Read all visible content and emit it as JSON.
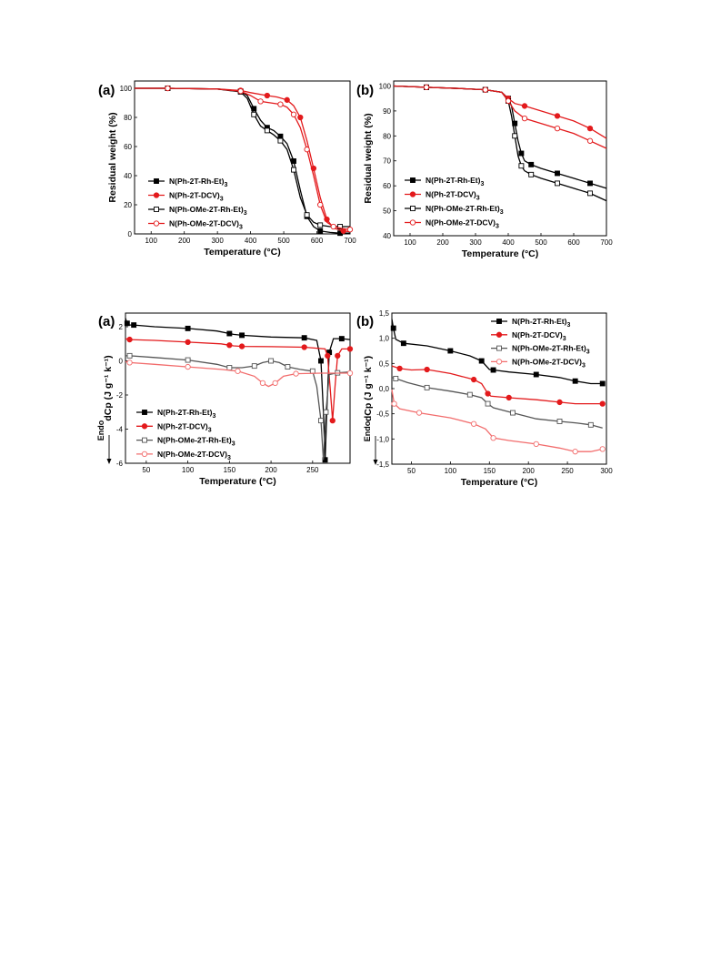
{
  "chart_data": [
    {
      "id": "tga-a",
      "type": "line",
      "panel_label": "(a)",
      "xlabel": "Temperature (°C)",
      "ylabel": "Residual weight (%)",
      "xlim": [
        50,
        700
      ],
      "ylim": [
        0,
        105
      ],
      "xticks": [
        100,
        200,
        300,
        400,
        500,
        600,
        700
      ],
      "yticks": [
        0,
        20,
        40,
        60,
        80,
        100
      ],
      "legend": "lower-left",
      "series": [
        {
          "name": "N(Ph-2T-Rh-Et)3",
          "color": "#000000",
          "marker": "square-filled",
          "x": [
            50,
            150,
            300,
            370,
            390,
            410,
            430,
            450,
            470,
            490,
            510,
            530,
            550,
            570,
            590,
            610,
            640,
            670,
            700
          ],
          "y": [
            100,
            100,
            99.5,
            98,
            95,
            86,
            78,
            73,
            71,
            67,
            62,
            50,
            30,
            12,
            5,
            2,
            1,
            0.5,
            0.5
          ]
        },
        {
          "name": "N(Ph-2T-DCV)3",
          "color": "#e31a1c",
          "marker": "circle-filled",
          "x": [
            50,
            150,
            300,
            370,
            400,
            450,
            480,
            510,
            530,
            550,
            570,
            590,
            610,
            630,
            650,
            680,
            700
          ],
          "y": [
            100,
            100,
            99.5,
            98.5,
            97,
            95,
            94,
            92,
            88,
            80,
            64,
            45,
            25,
            10,
            4,
            2,
            1.5
          ]
        },
        {
          "name": "N(Ph-OMe-2T-Rh-Et)3",
          "color": "#000000",
          "marker": "square-open",
          "x": [
            50,
            150,
            300,
            370,
            390,
            410,
            430,
            450,
            470,
            490,
            510,
            530,
            550,
            570,
            590,
            610,
            640,
            670,
            700
          ],
          "y": [
            100,
            100,
            99.5,
            97.5,
            93,
            82,
            74,
            71,
            68,
            64,
            58,
            44,
            25,
            13,
            8,
            6,
            5,
            5,
            5
          ]
        },
        {
          "name": "N(Ph-OMe-2T-DCV)3",
          "color": "#e31a1c",
          "marker": "circle-open",
          "x": [
            50,
            150,
            300,
            370,
            400,
            430,
            460,
            490,
            510,
            530,
            550,
            570,
            590,
            610,
            630,
            650,
            680,
            700
          ],
          "y": [
            100,
            100,
            99.5,
            98,
            95,
            91,
            90,
            89,
            87,
            82,
            73,
            58,
            40,
            20,
            8,
            5,
            3.5,
            3
          ]
        }
      ]
    },
    {
      "id": "tga-b",
      "type": "line",
      "panel_label": "(b)",
      "xlabel": "Temperature (°C)",
      "ylabel": "Residual weight (%)",
      "xlim": [
        50,
        700
      ],
      "ylim": [
        40,
        102
      ],
      "xticks": [
        100,
        200,
        300,
        400,
        500,
        600,
        700
      ],
      "yticks": [
        40,
        50,
        60,
        70,
        80,
        90,
        100
      ],
      "legend": "lower-left",
      "series": [
        {
          "name": "N(Ph-2T-Rh-Et)3",
          "color": "#000000",
          "marker": "square-filled",
          "x": [
            50,
            150,
            250,
            330,
            380,
            400,
            410,
            420,
            430,
            440,
            450,
            470,
            500,
            550,
            600,
            650,
            700
          ],
          "y": [
            100,
            99.5,
            99,
            98.5,
            97.5,
            95,
            92,
            85,
            78,
            73,
            70,
            68.5,
            67,
            65,
            63,
            61,
            59
          ]
        },
        {
          "name": "N(Ph-2T-DCV)3",
          "color": "#e31a1c",
          "marker": "circle-filled",
          "x": [
            50,
            150,
            250,
            330,
            380,
            400,
            420,
            450,
            500,
            550,
            600,
            650,
            700
          ],
          "y": [
            100,
            99.5,
            99,
            98.5,
            97.5,
            95,
            93,
            92,
            90,
            88,
            86,
            83,
            79
          ]
        },
        {
          "name": "N(Ph-OMe-2T-Rh-Et)3",
          "color": "#000000",
          "marker": "square-open",
          "x": [
            50,
            150,
            250,
            330,
            380,
            400,
            410,
            420,
            430,
            440,
            450,
            470,
            500,
            550,
            600,
            650,
            700
          ],
          "y": [
            100,
            99.5,
            99,
            98.5,
            97.5,
            94,
            88,
            80,
            72,
            68,
            66,
            64.5,
            63,
            61,
            59,
            57,
            54
          ]
        },
        {
          "name": "N(Ph-OMe-2T-DCV)3",
          "color": "#e31a1c",
          "marker": "circle-open",
          "x": [
            50,
            150,
            250,
            330,
            380,
            400,
            420,
            450,
            500,
            550,
            600,
            650,
            700
          ],
          "y": [
            100,
            99.5,
            99,
            98.5,
            97.5,
            94,
            90,
            87,
            85,
            83,
            81,
            78,
            75
          ]
        }
      ]
    },
    {
      "id": "dsc-a",
      "type": "line",
      "panel_label": "(a)",
      "xlabel": "Temperature (°C)",
      "ylabel": "dCp (J g⁻¹ k⁻¹)",
      "xlim": [
        25,
        295
      ],
      "ylim": [
        -6,
        2.8
      ],
      "xticks": [
        50,
        100,
        150,
        200,
        250
      ],
      "yticks": [
        -6,
        -4,
        -2,
        0,
        2
      ],
      "legend": "lower-left",
      "annotation": "Endo",
      "series": [
        {
          "name": "N(Ph-2T-Rh-Et)3",
          "color": "#000000",
          "marker": "square-filled",
          "x": [
            25,
            27,
            29,
            35,
            60,
            100,
            135,
            150,
            155,
            165,
            200,
            240,
            255,
            260,
            263,
            265,
            267,
            270,
            275,
            285,
            295
          ],
          "y": [
            2.5,
            2.2,
            2.1,
            2.1,
            2.0,
            1.9,
            1.75,
            1.6,
            1.55,
            1.5,
            1.4,
            1.35,
            1.2,
            0,
            -3,
            -5.8,
            -3,
            0.5,
            1.3,
            1.3,
            1.25
          ]
        },
        {
          "name": "N(Ph-2T-DCV)3",
          "color": "#e31a1c",
          "marker": "circle-filled",
          "x": [
            25,
            30,
            60,
            100,
            140,
            150,
            155,
            165,
            200,
            240,
            265,
            268,
            271,
            274,
            277,
            280,
            285,
            295
          ],
          "y": [
            1.3,
            1.25,
            1.2,
            1.1,
            1.0,
            0.92,
            0.88,
            0.85,
            0.83,
            0.8,
            0.7,
            0.3,
            -1.5,
            -3.5,
            -1.5,
            0.3,
            0.7,
            0.7
          ]
        },
        {
          "name": "N(Ph-OMe-2T-Rh-Et)3",
          "color": "#555555",
          "marker": "square-open",
          "x": [
            25,
            30,
            60,
            100,
            135,
            150,
            165,
            180,
            190,
            200,
            210,
            220,
            235,
            250,
            255,
            260,
            263,
            266,
            270,
            280,
            295
          ],
          "y": [
            0.3,
            0.3,
            0.2,
            0.05,
            -0.2,
            -0.4,
            -0.4,
            -0.3,
            -0.1,
            0,
            -0.1,
            -0.35,
            -0.5,
            -0.6,
            -1.5,
            -3.5,
            -5.8,
            -3,
            -0.8,
            -0.7,
            -0.65
          ]
        },
        {
          "name": "N(Ph-OMe-2T-DCV)3",
          "color": "#f26d6d",
          "marker": "circle-open",
          "x": [
            25,
            30,
            60,
            100,
            140,
            160,
            180,
            190,
            197,
            205,
            215,
            230,
            260,
            295
          ],
          "y": [
            -0.05,
            -0.1,
            -0.2,
            -0.35,
            -0.5,
            -0.6,
            -0.9,
            -1.3,
            -1.5,
            -1.3,
            -0.9,
            -0.75,
            -0.72,
            -0.72
          ]
        }
      ]
    },
    {
      "id": "dsc-b",
      "type": "line",
      "panel_label": "(b)",
      "xlabel": "Temperature (°C)",
      "ylabel": "dCp (J g⁻¹ k⁻¹)",
      "xlim": [
        25,
        300
      ],
      "ylim": [
        -1.5,
        1.5
      ],
      "xticks": [
        50,
        100,
        150,
        200,
        250,
        300
      ],
      "yticks": [
        -1.5,
        -1.0,
        -0.5,
        0.0,
        0.5,
        1.0,
        1.5
      ],
      "ytick_labels": [
        "-1,5",
        "-1,0",
        "-0,5",
        "0,0",
        "0,5",
        "1,0",
        "1,5"
      ],
      "legend": "top-right",
      "annotation": "Endo",
      "series": [
        {
          "name": "N(Ph-2T-Rh-Et)3",
          "color": "#000000",
          "marker": "square-filled",
          "x": [
            25,
            27,
            30,
            40,
            70,
            100,
            125,
            140,
            150,
            155,
            175,
            210,
            240,
            260,
            280,
            295
          ],
          "y": [
            1.38,
            1.2,
            0.98,
            0.9,
            0.85,
            0.75,
            0.65,
            0.55,
            0.38,
            0.37,
            0.33,
            0.28,
            0.22,
            0.15,
            0.1,
            0.1
          ]
        },
        {
          "name": "N(Ph-2T-DCV)3",
          "color": "#e31a1c",
          "marker": "circle-filled",
          "x": [
            25,
            35,
            50,
            70,
            100,
            130,
            140,
            148,
            152,
            175,
            210,
            240,
            260,
            295
          ],
          "y": [
            0.45,
            0.4,
            0.37,
            0.38,
            0.3,
            0.18,
            0.1,
            -0.1,
            -0.15,
            -0.18,
            -0.22,
            -0.27,
            -0.3,
            -0.3
          ]
        },
        {
          "name": "N(Ph-OMe-2T-Rh-Et)3",
          "color": "#555555",
          "marker": "square-open",
          "x": [
            25,
            30,
            45,
            70,
            100,
            125,
            140,
            148,
            155,
            180,
            210,
            240,
            260,
            280,
            295
          ],
          "y": [
            0.22,
            0.2,
            0.12,
            0.02,
            -0.05,
            -0.12,
            -0.18,
            -0.3,
            -0.38,
            -0.48,
            -0.6,
            -0.65,
            -0.68,
            -0.72,
            -0.78
          ]
        },
        {
          "name": "N(Ph-OMe-2T-DCV)3",
          "color": "#f26d6d",
          "marker": "circle-open",
          "x": [
            25,
            28,
            35,
            60,
            100,
            130,
            145,
            155,
            175,
            210,
            240,
            260,
            280,
            295
          ],
          "y": [
            -0.02,
            -0.3,
            -0.4,
            -0.48,
            -0.58,
            -0.7,
            -0.8,
            -0.98,
            -1.03,
            -1.1,
            -1.18,
            -1.25,
            -1.25,
            -1.2
          ]
        }
      ]
    }
  ]
}
